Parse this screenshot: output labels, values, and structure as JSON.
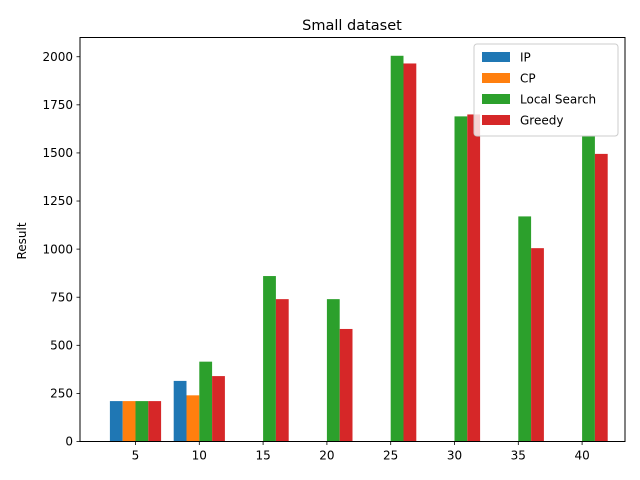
{
  "chart_data": {
    "type": "bar",
    "title": "Small dataset",
    "xlabel": "",
    "ylabel": "Result",
    "categories": [
      "5",
      "10",
      "15",
      "20",
      "25",
      "30",
      "35",
      "40"
    ],
    "ylim": [
      0,
      2100
    ],
    "yticks": [
      0,
      250,
      500,
      750,
      1000,
      1250,
      1500,
      1750,
      2000
    ],
    "grid": false,
    "legend_position": "upper right",
    "series": [
      {
        "name": "IP",
        "color": "#1f77b4",
        "values": [
          210,
          315,
          null,
          null,
          null,
          null,
          null,
          null
        ]
      },
      {
        "name": "CP",
        "color": "#ff7f0e",
        "values": [
          210,
          240,
          null,
          null,
          null,
          null,
          null,
          null
        ]
      },
      {
        "name": "Local Search",
        "color": "#2ca02c",
        "values": [
          210,
          415,
          860,
          740,
          2005,
          1690,
          1170,
          1590
        ]
      },
      {
        "name": "Greedy",
        "color": "#d62728",
        "values": [
          210,
          340,
          740,
          585,
          1965,
          1700,
          1005,
          1495
        ]
      }
    ]
  }
}
